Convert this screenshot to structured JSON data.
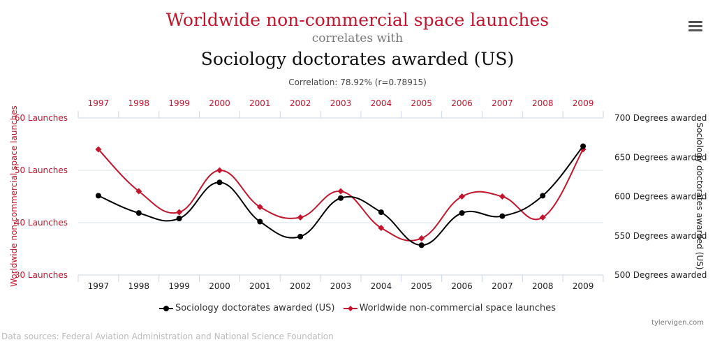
{
  "header": {
    "title_a": "Worldwide non-commercial space launches",
    "connector": "correlates with",
    "title_b": "Sociology doctorates awarded (US)",
    "correlation": "Correlation: 78.92% (r=0.78915)"
  },
  "menu_icon": "hamburger-menu-icon",
  "colors": {
    "launches": "#c1162d",
    "doctorates": "#000000",
    "grid": "#dde3ea"
  },
  "chart_data": {
    "type": "line",
    "x": [
      1997,
      1998,
      1999,
      2000,
      2001,
      2002,
      2003,
      2004,
      2005,
      2006,
      2007,
      2008,
      2009
    ],
    "left_axis": {
      "label": "Worldwide non-commercial space launches",
      "range": [
        30,
        60
      ],
      "ticks": [
        30,
        40,
        50,
        60
      ],
      "tick_suffix": " Launches"
    },
    "right_axis": {
      "label": "Sociology doctorates awarded (US)",
      "range": [
        500,
        700
      ],
      "ticks": [
        500,
        550,
        600,
        650,
        700
      ],
      "tick_suffix": " Degrees awarded"
    },
    "series": [
      {
        "name": "Sociology doctorates awarded (US)",
        "axis": "right",
        "color": "#000000",
        "marker": "circle",
        "values": [
          601,
          579,
          572,
          618,
          568,
          549,
          598,
          580,
          538,
          579,
          575,
          601,
          664
        ]
      },
      {
        "name": "Worldwide non-commercial space launches",
        "axis": "left",
        "color": "#c1162d",
        "marker": "diamond",
        "values": [
          54,
          46,
          42,
          50,
          43,
          41,
          46,
          39,
          37,
          45,
          45,
          41,
          54
        ]
      }
    ],
    "grid": true,
    "legend": "bottom"
  },
  "credit": "tylervigen.com",
  "sources": "Data sources: Federal Aviation Administration and National Science Foundation"
}
